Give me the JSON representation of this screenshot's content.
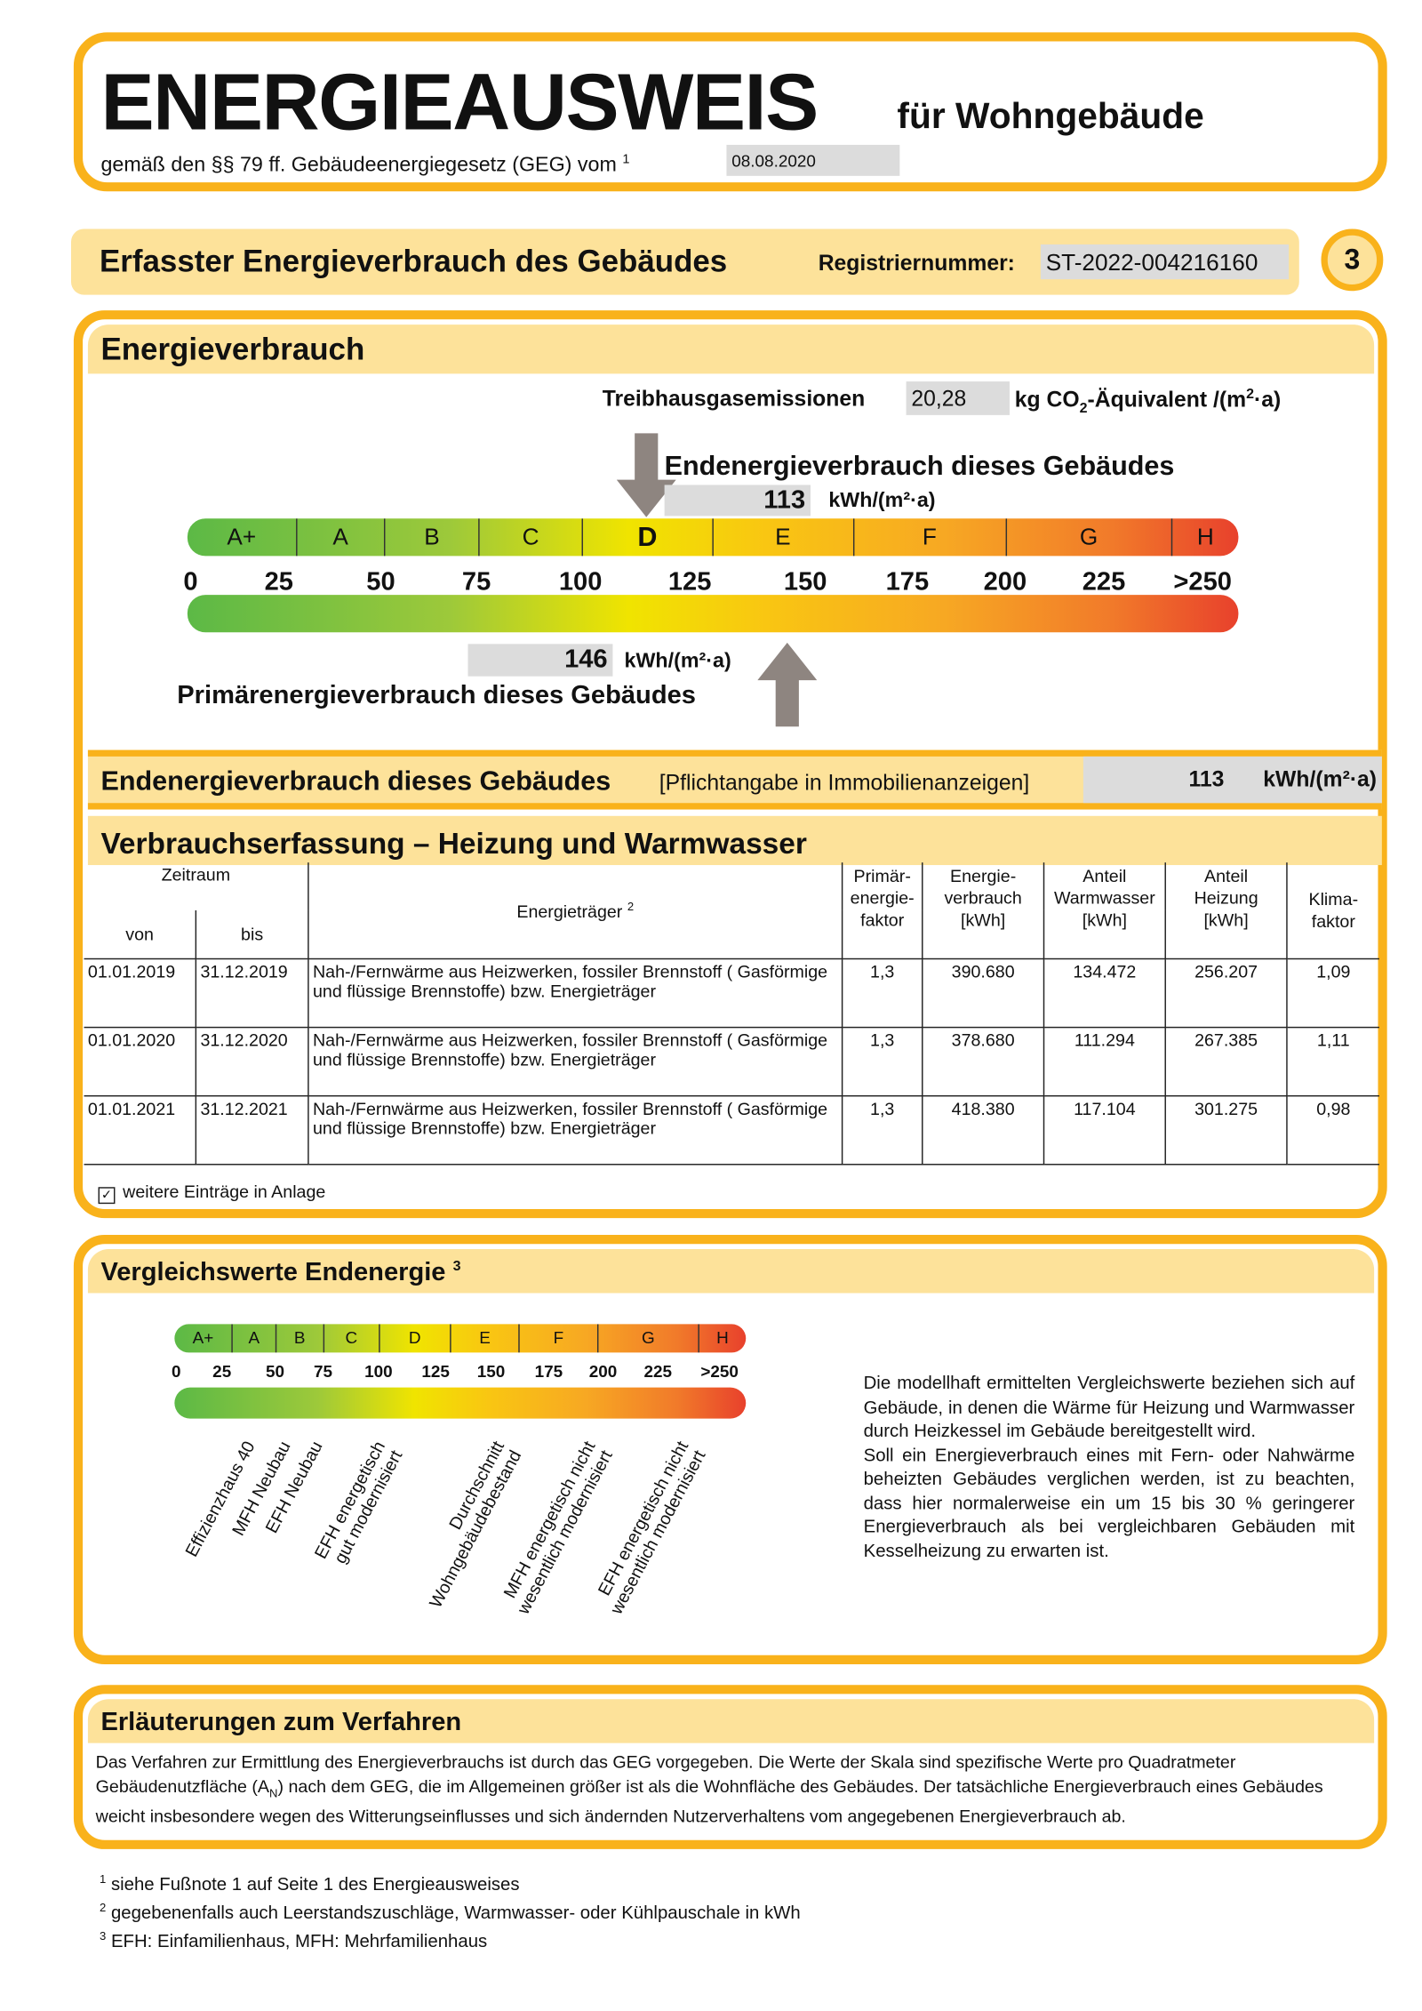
{
  "header": {
    "title": "ENERGIEAUSWEIS",
    "title_suffix": "für Wohngebäude",
    "subtitle": "gemäß den §§ 79 ff. Gebäudeenergiegesetz (GEG) vom",
    "subtitle_footnote": "1",
    "date": "08.08.2020"
  },
  "section": {
    "title": "Erfasster Energieverbrauch des Gebäudes",
    "reg_label": "Registriernummer:",
    "reg_value": "ST-2022-004216160",
    "page_number": "3"
  },
  "energy": {
    "title": "Energieverbrauch",
    "ghg_label": "Treibhausgasemissionen",
    "ghg_value": "20,28",
    "ghg_unit_pre": "kg CO",
    "ghg_unit_sub": "2",
    "ghg_unit_post": "-Äquivalent /(m",
    "ghg_unit_sup": "2",
    "ghg_unit_end": "·a)",
    "end_label": "Endenergieverbrauch dieses Gebäudes",
    "end_value": "113",
    "end_unit": "kWh/(m²·a)",
    "primary_label": "Primärenergieverbrauch dieses Gebäudes",
    "primary_value": "146",
    "primary_unit": "kWh/(m²·a)",
    "scale": {
      "classes": [
        "A+",
        "A",
        "B",
        "C",
        "D",
        "E",
        "F",
        "G",
        "H"
      ],
      "class_bounds": [
        0,
        30,
        50,
        75,
        100,
        130,
        160,
        200,
        250
      ],
      "active_class": "D",
      "ticks": [
        "0",
        "25",
        "50",
        "75",
        "100",
        "125",
        "150",
        "175",
        "200",
        "225",
        ">250"
      ],
      "end_energy_marker": 113,
      "primary_energy_marker": 146,
      "colors": {
        "green": "#5cb946",
        "yellow": "#f0e400",
        "orange": "#f7a823",
        "red": "#e8412c"
      }
    },
    "summary_label": "Endenergieverbrauch dieses Gebäudes",
    "summary_note": "[Pflichtangabe in Immobilienanzeigen]",
    "summary_value": "113",
    "summary_unit": "kWh/(m²·a)"
  },
  "consumption": {
    "title": "Verbrauchserfassung – Heizung und Warmwasser",
    "headers": {
      "period": "Zeitraum",
      "from": "von",
      "to": "bis",
      "carrier": "Energieträger",
      "carrier_fn": "2",
      "primary": "Primär-\nenergie-\nfaktor",
      "energy": "Energie-\nverbrauch\n[kWh]",
      "ww": "Anteil\nWarmwasser\n[kWh]",
      "heating": "Anteil\nHeizung\n[kWh]",
      "climate": "Klima-\nfaktor"
    },
    "rows": [
      {
        "from": "01.01.2019",
        "to": "31.12.2019",
        "carrier": "Nah-/Fernwärme aus Heizwerken, fossiler Brennstoff ( Gasförmige und flüssige Brennstoffe) bzw. Energieträger",
        "primary": "1,3",
        "energy": "390.680",
        "ww": "134.472",
        "heating": "256.207",
        "climate": "1,09"
      },
      {
        "from": "01.01.2020",
        "to": "31.12.2020",
        "carrier": "Nah-/Fernwärme aus Heizwerken, fossiler Brennstoff ( Gasförmige und flüssige Brennstoffe) bzw. Energieträger",
        "primary": "1,3",
        "energy": "378.680",
        "ww": "111.294",
        "heating": "267.385",
        "climate": "1,11"
      },
      {
        "from": "01.01.2021",
        "to": "31.12.2021",
        "carrier": "Nah-/Fernwärme aus Heizwerken, fossiler Brennstoff ( Gasförmige und flüssige Brennstoffe) bzw. Energieträger",
        "primary": "1,3",
        "energy": "418.380",
        "ww": "117.104",
        "heating": "301.275",
        "climate": "0,98"
      }
    ],
    "more_entries": "weitere Einträge in Anlage",
    "more_entries_checked": true
  },
  "comparison": {
    "title": "Vergleichswerte Endenergie",
    "title_fn": "3",
    "labels": [
      {
        "l1": "Effizienzhaus 40",
        "l2": ""
      },
      {
        "l1": "MFH Neubau",
        "l2": ""
      },
      {
        "l1": "EFH Neubau",
        "l2": ""
      },
      {
        "l1": "EFH energetisch",
        "l2": "gut modernisiert"
      },
      {
        "l1": "Durchschnitt",
        "l2": "Wohngebäudebestand"
      },
      {
        "l1": "MFH energetisch nicht",
        "l2": "wesentlich modernisiert"
      },
      {
        "l1": "EFH energetisch nicht",
        "l2": "wesentlich modernisiert"
      }
    ],
    "text1": "Die modellhaft ermittelten Vergleichswerte beziehen sich auf Gebäude, in denen die Wärme für Heizung und Warmwasser durch Heizkessel im Gebäude bereitgestellt wird.",
    "text2": "Soll ein Energieverbrauch eines mit Fern- oder Nahwärme beheizten Gebäudes verglichen werden, ist zu beachten, dass hier normalerweise ein um 15 bis 30 % geringerer Energieverbrauch als bei vergleichbaren Gebäuden mit Kesselheizung zu erwarten ist."
  },
  "explanation": {
    "title": "Erläuterungen zum Verfahren",
    "text_a": "Das Verfahren zur Ermittlung des Energieverbrauchs ist durch das GEG vorgegeben. Die Werte der Skala sind spezifische Werte pro Quadratmeter Gebäudenutzfläche (A",
    "text_sub": "N",
    "text_b": ") nach dem GEG, die im Allgemeinen größer ist als die Wohnfläche des Gebäudes. Der tatsächliche Energieverbrauch eines Gebäudes weicht insbesondere wegen des Witterungseinflusses und sich ändernden Nutzerverhaltens vom angegebenen Energieverbrauch ab."
  },
  "footnotes": [
    {
      "n": "1",
      "t": "siehe Fußnote 1 auf Seite 1 des Energieausweises"
    },
    {
      "n": "2",
      "t": "gegebenenfalls auch Leerstandszuschläge, Warmwasser- oder Kühlpauschale in kWh"
    },
    {
      "n": "3",
      "t": "EFH: Einfamilienhaus, MFH: Mehrfamilienhaus"
    }
  ]
}
